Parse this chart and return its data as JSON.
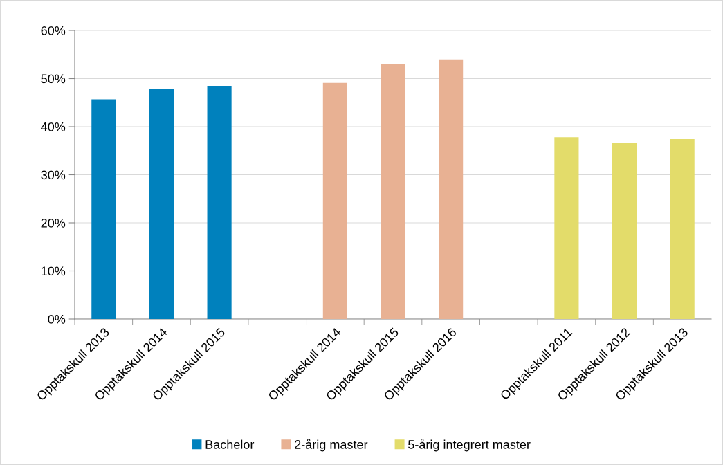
{
  "chart_data": {
    "type": "bar",
    "categories": [
      "Opptakskull 2013",
      "Opptakskull 2014",
      "Opptakskull 2015",
      null,
      "Opptakskull 2014",
      "Opptakskull 2015",
      "Opptakskull 2016",
      null,
      "Opptakskull 2011",
      "Opptakskull 2012",
      "Opptakskull 2013"
    ],
    "series": [
      {
        "name": "Bachelor",
        "color": "#0081bd",
        "values": [
          45.7,
          47.9,
          48.5,
          null,
          null,
          null,
          null,
          null,
          null,
          null,
          null
        ]
      },
      {
        "name": "2-årig master",
        "color": "#e8b193",
        "values": [
          null,
          null,
          null,
          null,
          49.1,
          53.1,
          54.0,
          null,
          null,
          null,
          null
        ]
      },
      {
        "name": "5-årig integrert master",
        "color": "#e3dc6a",
        "values": [
          null,
          null,
          null,
          null,
          null,
          null,
          null,
          null,
          37.8,
          36.6,
          37.4
        ]
      }
    ],
    "ylim": [
      0,
      60
    ],
    "yticks": [
      {
        "value": 0,
        "label": "0%"
      },
      {
        "value": 10,
        "label": "10%"
      },
      {
        "value": 20,
        "label": "20%"
      },
      {
        "value": 30,
        "label": "30%"
      },
      {
        "value": 40,
        "label": "40%"
      },
      {
        "value": 50,
        "label": "50%"
      },
      {
        "value": 60,
        "label": "60%"
      }
    ],
    "grid": "y",
    "legend": "bottom"
  }
}
